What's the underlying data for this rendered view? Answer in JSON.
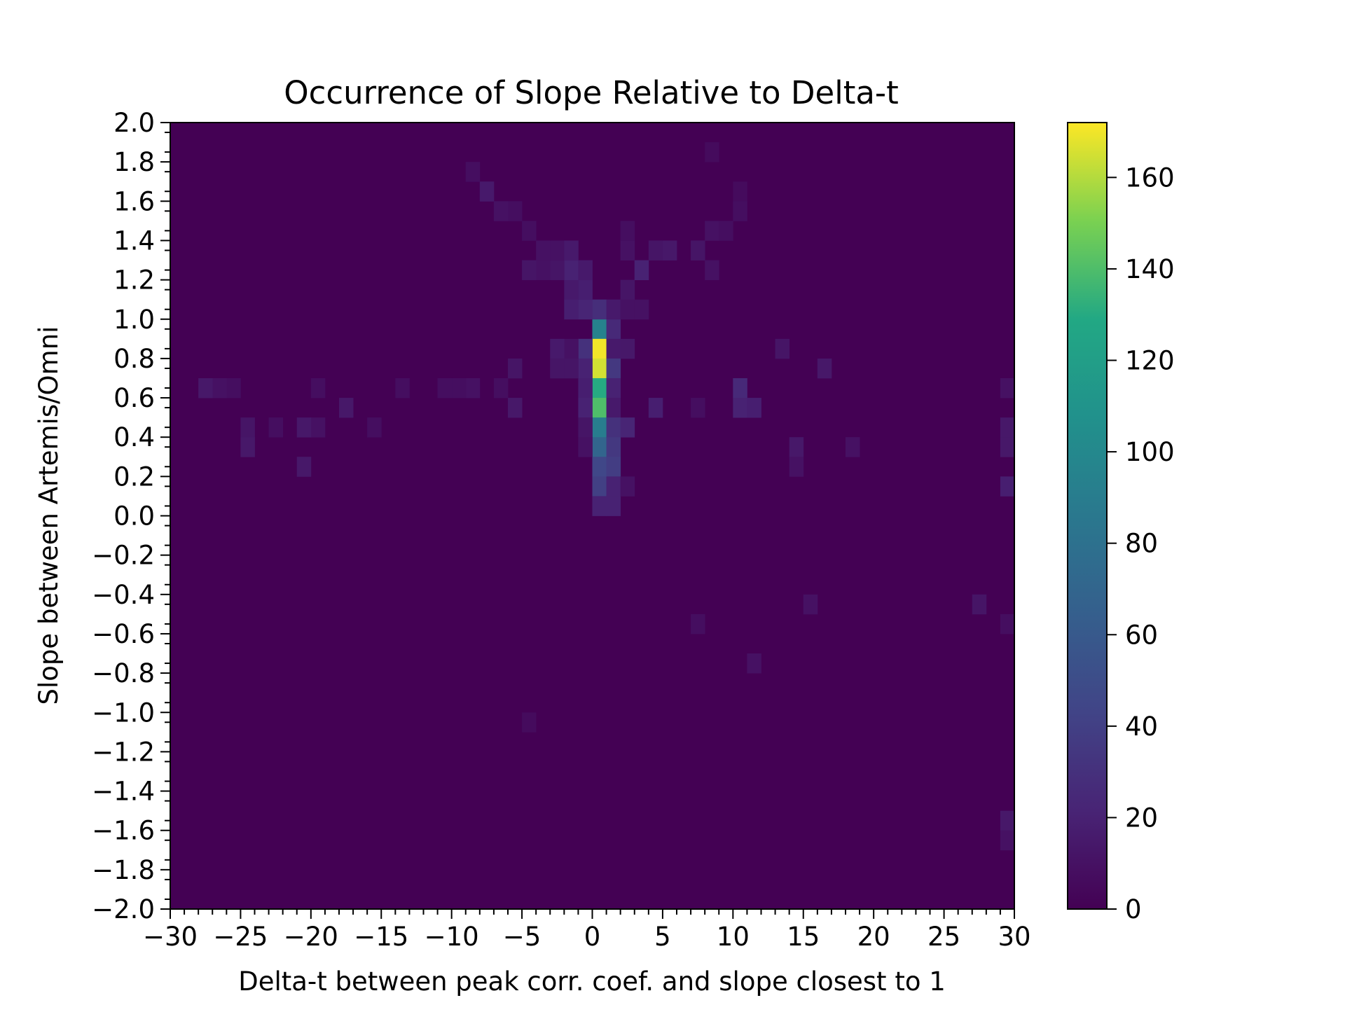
{
  "chart_data": {
    "type": "heatmap",
    "title": "Occurrence of Slope Relative to Delta-t",
    "xlabel": "Delta-t between peak corr. coef. and slope closest to 1",
    "ylabel": "Slope between Artemis/Omni",
    "xlim": [
      -30,
      30
    ],
    "ylim": [
      -2.0,
      2.0
    ],
    "x_bin_width": 1,
    "y_bin_width": 0.1,
    "x_ticks": [
      -30,
      -25,
      -20,
      -15,
      -10,
      -5,
      0,
      5,
      10,
      15,
      20,
      25,
      30
    ],
    "x_tick_labels": [
      "−30",
      "−25",
      "−20",
      "−15",
      "−10",
      "−5",
      "0",
      "5",
      "10",
      "15",
      "20",
      "25",
      "30"
    ],
    "y_ticks": [
      -2.0,
      -1.8,
      -1.6,
      -1.4,
      -1.2,
      -1.0,
      -0.8,
      -0.6,
      -0.4,
      -0.2,
      0.0,
      0.2,
      0.4,
      0.6,
      0.8,
      1.0,
      1.2,
      1.4,
      1.6,
      1.8,
      2.0
    ],
    "y_tick_labels": [
      "−2.0",
      "−1.8",
      "−1.6",
      "−1.4",
      "−1.2",
      "−1.0",
      "−0.8",
      "−0.6",
      "−0.4",
      "−0.2",
      "0.0",
      "0.2",
      "0.4",
      "0.6",
      "0.8",
      "1.0",
      "1.2",
      "1.4",
      "1.6",
      "1.8",
      "2.0"
    ],
    "colormap": "viridis",
    "colorbar": {
      "min": 0,
      "max": 172,
      "ticks": [
        0,
        20,
        40,
        60,
        80,
        100,
        120,
        140,
        160
      ],
      "tick_labels": [
        "0",
        "20",
        "40",
        "60",
        "80",
        "100",
        "120",
        "140",
        "160"
      ]
    },
    "background_value": 0,
    "grid": false,
    "cells": [
      {
        "x": 0,
        "y": 0.9,
        "value": 95
      },
      {
        "x": 0,
        "y": 0.8,
        "value": 170
      },
      {
        "x": 0,
        "y": 0.7,
        "value": 165
      },
      {
        "x": 0,
        "y": 0.6,
        "value": 130
      },
      {
        "x": 0,
        "y": 0.5,
        "value": 140
      },
      {
        "x": 0,
        "y": 0.4,
        "value": 90
      },
      {
        "x": 0,
        "y": 0.3,
        "value": 70
      },
      {
        "x": 0,
        "y": 0.2,
        "value": 45
      },
      {
        "x": 0,
        "y": 0.1,
        "value": 40
      },
      {
        "x": 0,
        "y": 0.0,
        "value": 20
      },
      {
        "x": 0,
        "y": 1.0,
        "value": 28
      },
      {
        "x": 1,
        "y": 0.9,
        "value": 25
      },
      {
        "x": 1,
        "y": 0.8,
        "value": 15
      },
      {
        "x": 1,
        "y": 0.7,
        "value": 35
      },
      {
        "x": 1,
        "y": 0.6,
        "value": 20
      },
      {
        "x": 1,
        "y": 0.5,
        "value": 15
      },
      {
        "x": 1,
        "y": 0.4,
        "value": 30
      },
      {
        "x": 1,
        "y": 0.3,
        "value": 35
      },
      {
        "x": 1,
        "y": 0.2,
        "value": 38
      },
      {
        "x": 1,
        "y": 0.1,
        "value": 20
      },
      {
        "x": 1,
        "y": 0.0,
        "value": 20
      },
      {
        "x": 1,
        "y": 1.0,
        "value": 15
      },
      {
        "x": -1,
        "y": 1.0,
        "value": 22
      },
      {
        "x": -1,
        "y": 0.8,
        "value": 30
      },
      {
        "x": -1,
        "y": 0.7,
        "value": 20
      },
      {
        "x": -1,
        "y": 0.6,
        "value": 18
      },
      {
        "x": -1,
        "y": 0.5,
        "value": 20
      },
      {
        "x": -1,
        "y": 0.4,
        "value": 12
      },
      {
        "x": -1,
        "y": 0.3,
        "value": 10
      },
      {
        "x": -1,
        "y": 1.1,
        "value": 18
      },
      {
        "x": -2,
        "y": 1.1,
        "value": 15
      },
      {
        "x": -2,
        "y": 1.2,
        "value": 20
      },
      {
        "x": -1,
        "y": 1.2,
        "value": 15
      },
      {
        "x": -2,
        "y": 1.0,
        "value": 18
      },
      {
        "x": -2,
        "y": 0.8,
        "value": 10
      },
      {
        "x": -2,
        "y": 0.7,
        "value": 12
      },
      {
        "x": -3,
        "y": 0.8,
        "value": 15
      },
      {
        "x": -3,
        "y": 0.7,
        "value": 12
      },
      {
        "x": -3,
        "y": 1.2,
        "value": 12
      },
      {
        "x": -3,
        "y": 1.3,
        "value": 10
      },
      {
        "x": -2,
        "y": 1.3,
        "value": 15
      },
      {
        "x": -4,
        "y": 1.2,
        "value": 10
      },
      {
        "x": -4,
        "y": 1.3,
        "value": 10
      },
      {
        "x": -5,
        "y": 1.2,
        "value": 12
      },
      {
        "x": -5,
        "y": 1.4,
        "value": 8
      },
      {
        "x": -6,
        "y": 1.5,
        "value": 8
      },
      {
        "x": -7,
        "y": 1.5,
        "value": 10
      },
      {
        "x": -8,
        "y": 1.6,
        "value": 15
      },
      {
        "x": -9,
        "y": 1.7,
        "value": 8
      },
      {
        "x": 2,
        "y": 1.1,
        "value": 12
      },
      {
        "x": 2,
        "y": 1.0,
        "value": 10
      },
      {
        "x": 2,
        "y": 0.8,
        "value": 14
      },
      {
        "x": 2,
        "y": 0.4,
        "value": 22
      },
      {
        "x": 2,
        "y": 0.1,
        "value": 10
      },
      {
        "x": 3,
        "y": 1.2,
        "value": 20
      },
      {
        "x": 3,
        "y": 1.0,
        "value": 10
      },
      {
        "x": 2,
        "y": 1.3,
        "value": 10
      },
      {
        "x": 2,
        "y": 1.4,
        "value": 8
      },
      {
        "x": 4,
        "y": 1.3,
        "value": 12
      },
      {
        "x": 5,
        "y": 1.3,
        "value": 14
      },
      {
        "x": 7,
        "y": 1.3,
        "value": 12
      },
      {
        "x": 8,
        "y": 1.2,
        "value": 10
      },
      {
        "x": 8,
        "y": 1.4,
        "value": 10
      },
      {
        "x": 9,
        "y": 1.4,
        "value": 8
      },
      {
        "x": 10,
        "y": 1.5,
        "value": 8
      },
      {
        "x": 10,
        "y": 1.6,
        "value": 6
      },
      {
        "x": 8,
        "y": 1.8,
        "value": 6
      },
      {
        "x": 4,
        "y": 0.5,
        "value": 18
      },
      {
        "x": 10,
        "y": 0.6,
        "value": 25
      },
      {
        "x": 10,
        "y": 0.5,
        "value": 20
      },
      {
        "x": 11,
        "y": 0.5,
        "value": 18
      },
      {
        "x": 7,
        "y": 0.5,
        "value": 8
      },
      {
        "x": -6,
        "y": 0.7,
        "value": 12
      },
      {
        "x": -6,
        "y": 0.5,
        "value": 14
      },
      {
        "x": -7,
        "y": 0.6,
        "value": 8
      },
      {
        "x": -9,
        "y": 0.6,
        "value": 10
      },
      {
        "x": -10,
        "y": 0.6,
        "value": 8
      },
      {
        "x": -11,
        "y": 0.6,
        "value": 8
      },
      {
        "x": -14,
        "y": 0.6,
        "value": 8
      },
      {
        "x": -18,
        "y": 0.5,
        "value": 14
      },
      {
        "x": -20,
        "y": 0.4,
        "value": 10
      },
      {
        "x": -21,
        "y": 0.4,
        "value": 14
      },
      {
        "x": -20,
        "y": 0.6,
        "value": 8
      },
      {
        "x": -16,
        "y": 0.4,
        "value": 8
      },
      {
        "x": -25,
        "y": 0.4,
        "value": 12
      },
      {
        "x": -25,
        "y": 0.3,
        "value": 14
      },
      {
        "x": -23,
        "y": 0.4,
        "value": 8
      },
      {
        "x": -26,
        "y": 0.6,
        "value": 8
      },
      {
        "x": -27,
        "y": 0.6,
        "value": 10
      },
      {
        "x": -28,
        "y": 0.6,
        "value": 14
      },
      {
        "x": -21,
        "y": 0.2,
        "value": 14
      },
      {
        "x": 14,
        "y": 0.3,
        "value": 14
      },
      {
        "x": 14,
        "y": 0.2,
        "value": 10
      },
      {
        "x": 16,
        "y": 0.7,
        "value": 14
      },
      {
        "x": 13,
        "y": 0.8,
        "value": 12
      },
      {
        "x": 18,
        "y": 0.3,
        "value": 10
      },
      {
        "x": 29,
        "y": 0.6,
        "value": 10
      },
      {
        "x": 29,
        "y": 0.4,
        "value": 14
      },
      {
        "x": 29,
        "y": 0.3,
        "value": 14
      },
      {
        "x": 29,
        "y": 0.1,
        "value": 18
      },
      {
        "x": 15,
        "y": -0.5,
        "value": 10
      },
      {
        "x": 27,
        "y": -0.5,
        "value": 12
      },
      {
        "x": 29,
        "y": -0.6,
        "value": 8
      },
      {
        "x": 7,
        "y": -0.6,
        "value": 8
      },
      {
        "x": 11,
        "y": -0.8,
        "value": 10
      },
      {
        "x": 29,
        "y": -1.6,
        "value": 14
      },
      {
        "x": 29,
        "y": -1.7,
        "value": 10
      },
      {
        "x": -5,
        "y": -1.1,
        "value": 6
      }
    ]
  }
}
